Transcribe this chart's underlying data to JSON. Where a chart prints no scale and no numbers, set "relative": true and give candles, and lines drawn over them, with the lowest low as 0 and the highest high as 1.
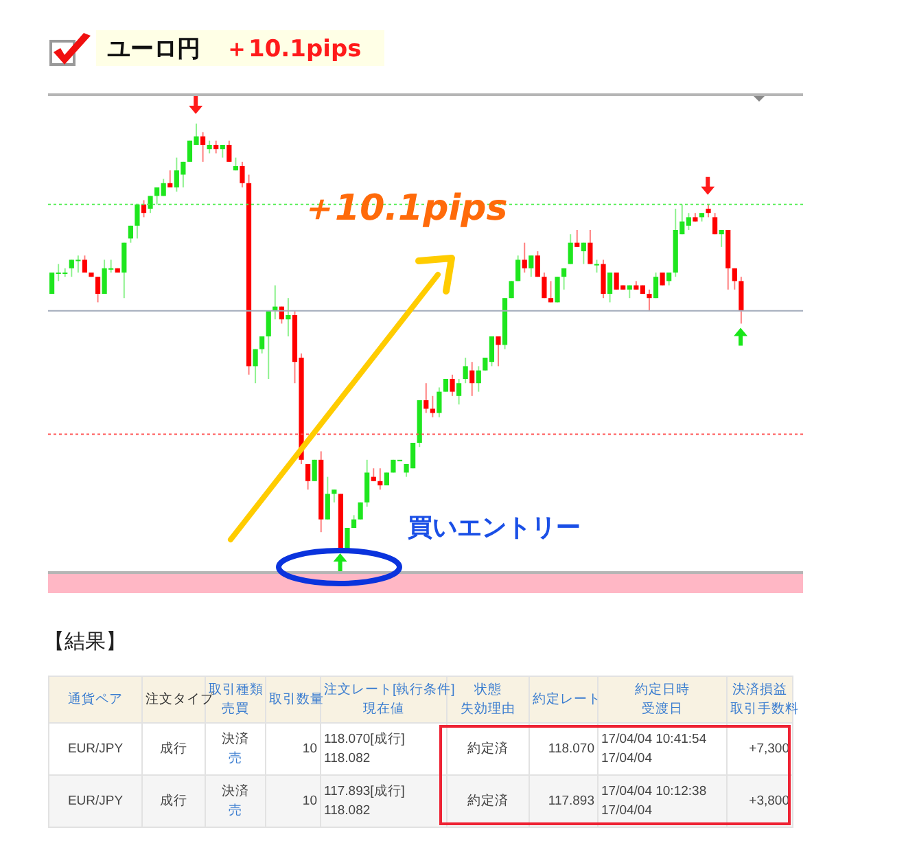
{
  "chart_data": {
    "type": "candlestick",
    "title": "ユーロ円",
    "subtitle": "＋10.1pips",
    "relative": true,
    "categories": [
      null,
      null,
      null,
      null,
      null,
      null,
      null,
      null,
      null,
      null,
      null,
      null,
      null,
      null,
      null,
      null,
      null,
      null,
      null,
      null,
      null,
      null,
      null,
      null,
      null,
      null,
      null,
      null,
      null,
      null,
      null,
      null,
      null,
      null,
      null,
      null,
      null,
      null,
      null,
      null,
      null,
      null,
      null,
      null,
      null,
      null,
      null,
      null,
      null,
      null,
      null,
      null,
      null,
      null,
      null,
      null,
      null,
      null,
      null,
      null,
      null,
      null,
      null,
      null,
      null,
      null,
      null,
      null,
      null,
      null,
      null,
      null,
      null,
      null,
      null,
      null,
      null,
      null,
      null,
      null,
      null,
      null,
      null,
      null,
      null,
      null,
      null,
      null,
      null,
      null,
      null,
      null,
      null,
      null,
      null,
      null,
      null,
      null,
      null,
      null,
      null,
      null,
      null,
      null,
      null,
      null
    ],
    "ohlc": [
      [
        0.6,
        0.65,
        0.6,
        0.65
      ],
      [
        0.65,
        0.67,
        0.63,
        0.65
      ],
      [
        0.65,
        0.66,
        0.64,
        0.65
      ],
      [
        0.66,
        0.68,
        0.64,
        0.68
      ],
      [
        0.68,
        0.69,
        0.65,
        0.68
      ],
      [
        0.68,
        0.69,
        0.65,
        0.65
      ],
      [
        0.65,
        0.65,
        0.64,
        0.64
      ],
      [
        0.64,
        0.64,
        0.58,
        0.6
      ],
      [
        0.6,
        0.68,
        0.6,
        0.66
      ],
      [
        0.66,
        0.68,
        0.65,
        0.66
      ],
      [
        0.66,
        0.66,
        0.65,
        0.65
      ],
      [
        0.65,
        0.72,
        0.59,
        0.72
      ],
      [
        0.73,
        0.76,
        0.72,
        0.76
      ],
      [
        0.76,
        0.81,
        0.73,
        0.81
      ],
      [
        0.81,
        0.82,
        0.78,
        0.79
      ],
      [
        0.8,
        0.83,
        0.79,
        0.83
      ],
      [
        0.83,
        0.85,
        0.81,
        0.85
      ],
      [
        0.83,
        0.87,
        0.83,
        0.86
      ],
      [
        0.86,
        0.89,
        0.85,
        0.85
      ],
      [
        0.85,
        0.92,
        0.84,
        0.89
      ],
      [
        0.88,
        0.91,
        0.85,
        0.91
      ],
      [
        0.91,
        0.96,
        0.91,
        0.96
      ],
      [
        0.95,
        1.0,
        0.95,
        0.97
      ],
      [
        0.97,
        0.98,
        0.91,
        0.95
      ],
      [
        0.94,
        0.96,
        0.93,
        0.95
      ],
      [
        0.95,
        0.96,
        0.93,
        0.94
      ],
      [
        0.94,
        0.95,
        0.92,
        0.95
      ],
      [
        0.95,
        0.96,
        0.91,
        0.91
      ],
      [
        0.89,
        0.92,
        0.89,
        0.9
      ],
      [
        0.9,
        0.91,
        0.85,
        0.86
      ],
      [
        0.86,
        0.88,
        0.41,
        0.43
      ],
      [
        0.43,
        0.47,
        0.39,
        0.47
      ],
      [
        0.47,
        0.5,
        0.46,
        0.5
      ],
      [
        0.5,
        0.56,
        0.4,
        0.56
      ],
      [
        0.56,
        0.62,
        0.54,
        0.57
      ],
      [
        0.57,
        0.57,
        0.53,
        0.54
      ],
      [
        0.54,
        0.59,
        0.5,
        0.55
      ],
      [
        0.55,
        0.56,
        0.39,
        0.44
      ],
      [
        0.45,
        0.46,
        0.2,
        0.21
      ],
      [
        0.2,
        0.2,
        0.14,
        0.16
      ],
      [
        0.16,
        0.21,
        0.16,
        0.21
      ],
      [
        0.21,
        0.23,
        0.04,
        0.07
      ],
      [
        0.07,
        0.17,
        0.07,
        0.13
      ],
      [
        0.13,
        0.14,
        0.11,
        0.14
      ],
      [
        0.13,
        0.13,
        0,
        0.0
      ],
      [
        0.0,
        0.05,
        0,
        0.05
      ],
      [
        0.05,
        0.08,
        0.05,
        0.07
      ],
      [
        0.07,
        0.11,
        0.07,
        0.11
      ],
      [
        0.11,
        0.21,
        0.1,
        0.18
      ],
      [
        0.17,
        0.19,
        0.16,
        0.16
      ],
      [
        0.16,
        0.19,
        0.14,
        0.15
      ],
      [
        0.15,
        0.18,
        0.15,
        0.18
      ],
      [
        0.18,
        0.21,
        0.18,
        0.21
      ],
      [
        0.21,
        0.21,
        0.21,
        0.21
      ],
      [
        0.18,
        0.2,
        0.17,
        0.2
      ],
      [
        0.19,
        0.25,
        0.19,
        0.25
      ],
      [
        0.25,
        0.35,
        0.24,
        0.35
      ],
      [
        0.35,
        0.39,
        0.32,
        0.33
      ],
      [
        0.33,
        0.36,
        0.31,
        0.32
      ],
      [
        0.32,
        0.38,
        0.31,
        0.37
      ],
      [
        0.37,
        0.4,
        0.37,
        0.4
      ],
      [
        0.4,
        0.41,
        0.36,
        0.37
      ],
      [
        0.36,
        0.4,
        0.34,
        0.39
      ],
      [
        0.4,
        0.45,
        0.39,
        0.43
      ],
      [
        0.42,
        0.44,
        0.36,
        0.39
      ],
      [
        0.39,
        0.43,
        0.37,
        0.42
      ],
      [
        0.42,
        0.45,
        0.42,
        0.45
      ],
      [
        0.44,
        0.5,
        0.43,
        0.5
      ],
      [
        0.5,
        0.5,
        0.43,
        0.48
      ],
      [
        0.48,
        0.59,
        0.47,
        0.59
      ],
      [
        0.59,
        0.63,
        0.59,
        0.63
      ],
      [
        0.63,
        0.69,
        0.63,
        0.68
      ],
      [
        0.68,
        0.72,
        0.65,
        0.66
      ],
      [
        0.66,
        0.69,
        0.64,
        0.69
      ],
      [
        0.69,
        0.7,
        0.64,
        0.64
      ],
      [
        0.64,
        0.65,
        0.59,
        0.59
      ],
      [
        0.59,
        0.63,
        0.58,
        0.58
      ],
      [
        0.58,
        0.64,
        0.58,
        0.64
      ],
      [
        0.64,
        0.66,
        0.61,
        0.66
      ],
      [
        0.67,
        0.74,
        0.67,
        0.72
      ],
      [
        0.72,
        0.75,
        0.71,
        0.71
      ],
      [
        0.7,
        0.72,
        0.67,
        0.72
      ],
      [
        0.72,
        0.75,
        0.67,
        0.67
      ],
      [
        0.67,
        0.68,
        0.65,
        0.67
      ],
      [
        0.67,
        0.68,
        0.59,
        0.6
      ],
      [
        0.6,
        0.65,
        0.58,
        0.65
      ],
      [
        0.65,
        0.65,
        0.61,
        0.61
      ],
      [
        0.62,
        0.62,
        0.61,
        0.61
      ],
      [
        0.61,
        0.62,
        0.59,
        0.62
      ],
      [
        0.62,
        0.63,
        0.61,
        0.61
      ],
      [
        0.62,
        0.62,
        0.6,
        0.6
      ],
      [
        0.6,
        0.61,
        0.56,
        0.59
      ],
      [
        0.59,
        0.65,
        0.59,
        0.64
      ],
      [
        0.65,
        0.65,
        0.62,
        0.62
      ],
      [
        0.63,
        0.65,
        0.62,
        0.65
      ],
      [
        0.65,
        0.8,
        0.64,
        0.75
      ],
      [
        0.74,
        0.81,
        0.74,
        0.77
      ],
      [
        0.76,
        0.79,
        0.75,
        0.78
      ],
      [
        0.78,
        0.79,
        0.77,
        0.77
      ],
      [
        0.78,
        0.79,
        0.77,
        0.79
      ],
      [
        0.8,
        0.81,
        0.78,
        0.79
      ],
      [
        0.78,
        0.79,
        0.74,
        0.74
      ],
      [
        0.74,
        0.75,
        0.71,
        0.75
      ],
      [
        0.75,
        0.75,
        0.61,
        0.66
      ],
      [
        0.66,
        0.66,
        0.61,
        0.63
      ],
      [
        0.63,
        0.64,
        0.53,
        0.56
      ]
    ],
    "colors": [
      "#1ee61e",
      "#1ee61e",
      "#1ee61e",
      "#1ee61e",
      "#1ee61e",
      "#ff0000",
      "#ff0000",
      "#ff0000",
      "#1ee61e",
      "#1ee61e",
      "#ff0000",
      "#1ee61e",
      "#1ee61e",
      "#1ee61e",
      "#ff0000",
      "#1ee61e",
      "#1ee61e",
      "#1ee61e",
      "#ff0000",
      "#1ee61e",
      "#1ee61e",
      "#1ee61e",
      "#1ee61e",
      "#ff0000",
      "#1ee61e",
      "#ff0000",
      "#1ee61e",
      "#ff0000",
      "#1ee61e",
      "#ff0000",
      "#ff0000",
      "#1ee61e",
      "#1ee61e",
      "#1ee61e",
      "#1ee61e",
      "#ff0000",
      "#1ee61e",
      "#ff0000",
      "#ff0000",
      "#ff0000",
      "#1ee61e",
      "#ff0000",
      "#1ee61e",
      "#1ee61e",
      "#ff0000",
      "#1ee61e",
      "#1ee61e",
      "#1ee61e",
      "#1ee61e",
      "#ff0000",
      "#ff0000",
      "#1ee61e",
      "#1ee61e",
      "#1ee61e",
      "#1ee61e",
      "#1ee61e",
      "#1ee61e",
      "#ff0000",
      "#ff0000",
      "#1ee61e",
      "#1ee61e",
      "#ff0000",
      "#1ee61e",
      "#1ee61e",
      "#ff0000",
      "#1ee61e",
      "#1ee61e",
      "#1ee61e",
      "#ff0000",
      "#1ee61e",
      "#1ee61e",
      "#1ee61e",
      "#ff0000",
      "#1ee61e",
      "#ff0000",
      "#ff0000",
      "#ff0000",
      "#1ee61e",
      "#1ee61e",
      "#1ee61e",
      "#ff0000",
      "#1ee61e",
      "#ff0000",
      "#1ee61e",
      "#ff0000",
      "#1ee61e",
      "#ff0000",
      "#ff0000",
      "#1ee61e",
      "#ff0000",
      "#ff0000",
      "#ff0000",
      "#1ee61e",
      "#ff0000",
      "#1ee61e",
      "#1ee61e",
      "#1ee61e",
      "#1ee61e",
      "#ff0000",
      "#1ee61e",
      "#ff0000",
      "#ff0000",
      "#1ee61e",
      "#ff0000",
      "#ff0000",
      "#ff0000"
    ],
    "ref_lines": [
      {
        "axis": "y",
        "value": 0.81,
        "color": "#55ee55",
        "line_style": "dotted"
      },
      {
        "axis": "y",
        "value": 0.56,
        "color": "#a3abbb",
        "line_style": "solid"
      },
      {
        "axis": "y",
        "value": 0.27,
        "color": "#ff5555",
        "line_style": "dotted"
      }
    ],
    "annotations": [
      "＋10.1pips",
      "買いエントリー",
      "【結果】",
      "通貨ペア",
      "注文タイプ",
      "取引種類",
      "売買",
      "取引数量",
      "注文レート[執行条件]",
      "現在値",
      "状態",
      "失効理由",
      "約定レート",
      "約定日時",
      "受渡日",
      "決済損益",
      "取引手数料",
      "EUR/JPY",
      "成行",
      "決済",
      "売",
      "10",
      "118.070[成行]",
      "118.082",
      "約定済",
      "118.070",
      "17/04/04 10:41:54",
      "17/04/04",
      "+7,300",
      "EUR/JPY",
      "成行",
      "決済",
      "売",
      "10",
      "117.893[成行]",
      "118.082",
      "約定済",
      "117.893",
      "17/04/04 10:12:38",
      "17/04/04",
      "+3,800"
    ]
  }
}
